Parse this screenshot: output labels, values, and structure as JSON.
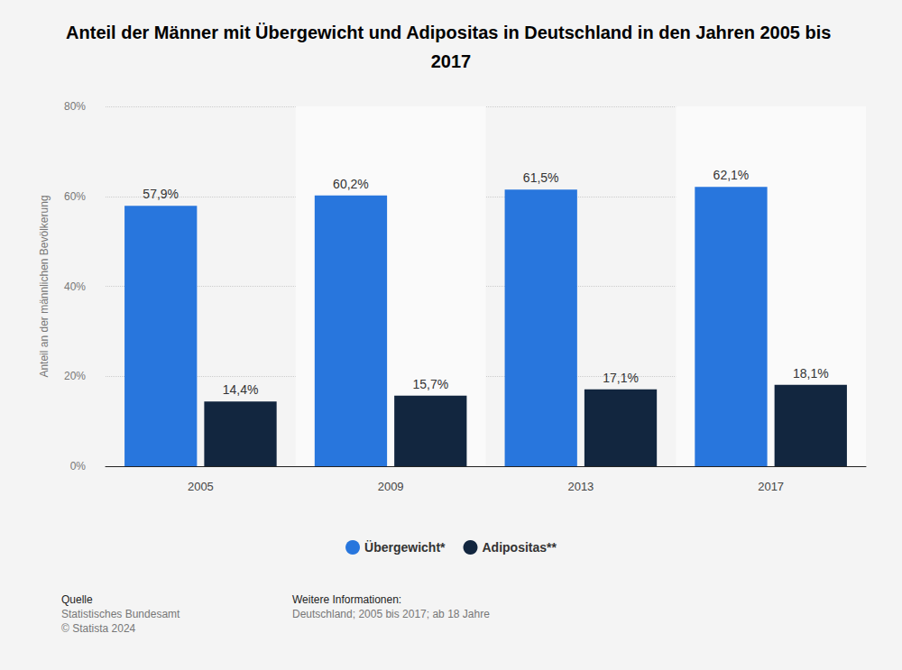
{
  "chart_data": {
    "type": "bar",
    "title": "Anteil der Männer mit Übergewicht und Adipositas in Deutschland in den Jahren 2005 bis 2017",
    "y_label": "Anteil an der männlichen Bevölkerung",
    "categories": [
      "2005",
      "2009",
      "2013",
      "2017"
    ],
    "series": [
      {
        "name": "Übergewicht*",
        "color": "#2876dd",
        "values": [
          57.9,
          60.2,
          61.5,
          62.1
        ],
        "value_labels": [
          "57,9%",
          "60,2%",
          "61,5%",
          "62,1%"
        ]
      },
      {
        "name": "Adipositas**",
        "color": "#12263f",
        "values": [
          14.4,
          15.7,
          17.1,
          18.1
        ],
        "value_labels": [
          "14,4%",
          "15,7%",
          "17,1%",
          "18,1%"
        ]
      }
    ],
    "ylim": [
      0,
      80
    ],
    "yticks": [
      {
        "value": 0,
        "label": "0%"
      },
      {
        "value": 20,
        "label": "20%"
      },
      {
        "value": 40,
        "label": "40%"
      },
      {
        "value": 60,
        "label": "60%"
      },
      {
        "value": 80,
        "label": "80%"
      }
    ],
    "grid": true,
    "legend": "bottom",
    "data_labels": true,
    "annotations": [
      "Quelle",
      "Statistisches Bundesamt",
      "© Statista 2024",
      "Weitere Informationen:",
      "Deutschland; 2005 bis 2017; ab 18 Jahre"
    ]
  }
}
